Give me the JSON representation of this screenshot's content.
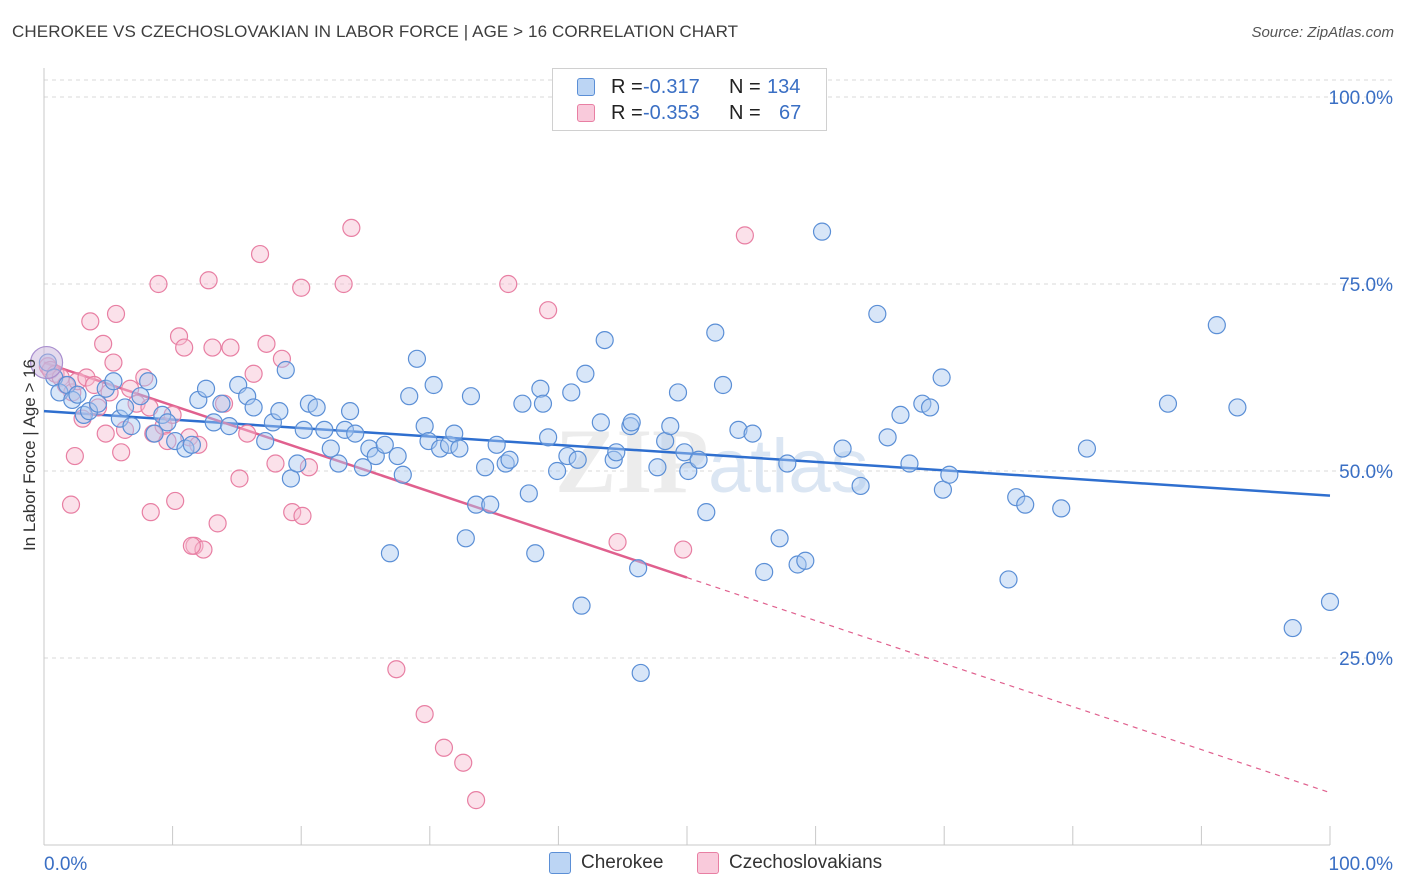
{
  "title": "CHEROKEE VS CZECHOSLOVAKIAN IN LABOR FORCE | AGE > 16 CORRELATION CHART",
  "source": "Source: ZipAtlas.com",
  "watermark": "ZIPatlas",
  "legend": {
    "rows": [
      {
        "r_label": "R =",
        "r_value": "-0.317",
        "n_label": "N =",
        "n_value": "134"
      },
      {
        "r_label": "R =",
        "r_value": "-0.353",
        "n_label": "N =",
        "n_value": "67"
      }
    ]
  },
  "bottom_legend": [
    "Cherokee",
    "Czechoslovakians"
  ],
  "colors": {
    "cherokee_fill": "#a9c8f0",
    "cherokee_stroke": "#5b8fd6",
    "cherokee_line": "#2f6fcf",
    "czech_fill": "#f6bcd0",
    "czech_stroke": "#e87fa3",
    "czech_line": "#e0608e",
    "grid": "#d8d8d8",
    "tick_text": "#3a6fc4"
  },
  "chart_data": {
    "type": "scatter",
    "xlabel": "",
    "ylabel": "In Labor Force | Age > 16",
    "xlim": [
      0,
      100
    ],
    "ylim": [
      0,
      107
    ],
    "x_tick_labels": [
      "0.0%",
      "100.0%"
    ],
    "y_ticks": [
      25,
      50,
      75,
      100
    ],
    "y_tick_labels": [
      "25.0%",
      "50.0%",
      "75.0%",
      "100.0%"
    ],
    "grid": true,
    "legend_position": "top-center",
    "series": [
      {
        "name": "Cherokee",
        "R": -0.317,
        "N": 134,
        "trend": {
          "x0": 0,
          "y0": 58.0,
          "x1": 100,
          "y1": 46.7
        },
        "points": [
          [
            0.3,
            64.5
          ],
          [
            0.8,
            62.5
          ],
          [
            1.2,
            60.5
          ],
          [
            1.8,
            61.5
          ],
          [
            2.2,
            59.5
          ],
          [
            2.6,
            60.2
          ],
          [
            3.1,
            57.5
          ],
          [
            3.5,
            58.0
          ],
          [
            4.2,
            59.0
          ],
          [
            4.8,
            61.0
          ],
          [
            5.4,
            62.0
          ],
          [
            5.9,
            57.0
          ],
          [
            6.3,
            58.5
          ],
          [
            6.8,
            56.0
          ],
          [
            7.5,
            60.0
          ],
          [
            8.1,
            62.0
          ],
          [
            8.6,
            55.0
          ],
          [
            9.2,
            57.5
          ],
          [
            9.6,
            56.5
          ],
          [
            10.2,
            54.0
          ],
          [
            11.0,
            53.0
          ],
          [
            11.5,
            53.5
          ],
          [
            12.0,
            59.5
          ],
          [
            12.6,
            61.0
          ],
          [
            13.2,
            56.5
          ],
          [
            13.8,
            59.0
          ],
          [
            14.4,
            56.0
          ],
          [
            15.1,
            61.5
          ],
          [
            15.8,
            60.0
          ],
          [
            16.3,
            58.5
          ],
          [
            17.2,
            54.0
          ],
          [
            17.8,
            56.5
          ],
          [
            18.3,
            58.0
          ],
          [
            18.8,
            63.5
          ],
          [
            19.2,
            49.0
          ],
          [
            19.7,
            51.0
          ],
          [
            20.2,
            55.5
          ],
          [
            20.6,
            59.0
          ],
          [
            21.2,
            58.5
          ],
          [
            21.8,
            55.5
          ],
          [
            22.3,
            53.0
          ],
          [
            22.9,
            51.0
          ],
          [
            23.4,
            55.5
          ],
          [
            23.8,
            58.0
          ],
          [
            24.2,
            55.0
          ],
          [
            24.8,
            50.5
          ],
          [
            25.3,
            53.0
          ],
          [
            25.8,
            52.0
          ],
          [
            26.5,
            53.5
          ],
          [
            26.9,
            39.0
          ],
          [
            27.5,
            52.0
          ],
          [
            27.9,
            49.5
          ],
          [
            28.4,
            60.0
          ],
          [
            29.0,
            65.0
          ],
          [
            29.6,
            56.0
          ],
          [
            29.9,
            54.0
          ],
          [
            30.3,
            61.5
          ],
          [
            30.8,
            53.0
          ],
          [
            31.5,
            53.5
          ],
          [
            31.9,
            55.0
          ],
          [
            32.3,
            53.0
          ],
          [
            32.8,
            41.0
          ],
          [
            33.2,
            60.0
          ],
          [
            33.6,
            45.5
          ],
          [
            34.3,
            50.5
          ],
          [
            34.7,
            45.5
          ],
          [
            35.2,
            53.5
          ],
          [
            35.9,
            51.0
          ],
          [
            36.2,
            51.5
          ],
          [
            37.2,
            59.0
          ],
          [
            37.7,
            47.0
          ],
          [
            38.2,
            39.0
          ],
          [
            38.6,
            61.0
          ],
          [
            38.8,
            59.0
          ],
          [
            39.2,
            54.5
          ],
          [
            39.9,
            50.0
          ],
          [
            40.7,
            52.0
          ],
          [
            41.0,
            60.5
          ],
          [
            41.5,
            51.5
          ],
          [
            41.8,
            32.0
          ],
          [
            42.1,
            63.0
          ],
          [
            43.3,
            56.5
          ],
          [
            43.6,
            67.5
          ],
          [
            44.3,
            51.5
          ],
          [
            44.5,
            52.5
          ],
          [
            45.6,
            56.0
          ],
          [
            45.7,
            56.5
          ],
          [
            46.2,
            37.0
          ],
          [
            46.4,
            23.0
          ],
          [
            47.7,
            50.5
          ],
          [
            48.3,
            54.0
          ],
          [
            48.7,
            56.0
          ],
          [
            49.3,
            60.5
          ],
          [
            49.8,
            52.5
          ],
          [
            50.1,
            50.0
          ],
          [
            50.9,
            51.5
          ],
          [
            51.5,
            44.5
          ],
          [
            52.2,
            68.5
          ],
          [
            52.8,
            61.5
          ],
          [
            54.0,
            55.5
          ],
          [
            55.1,
            55.0
          ],
          [
            56.0,
            36.5
          ],
          [
            57.2,
            41.0
          ],
          [
            57.8,
            51.0
          ],
          [
            58.6,
            37.5
          ],
          [
            59.2,
            38.0
          ],
          [
            60.5,
            82.0
          ],
          [
            62.1,
            53.0
          ],
          [
            63.5,
            48.0
          ],
          [
            64.8,
            71.0
          ],
          [
            65.6,
            54.5
          ],
          [
            66.6,
            57.5
          ],
          [
            67.3,
            51.0
          ],
          [
            68.3,
            59.0
          ],
          [
            68.9,
            58.5
          ],
          [
            69.8,
            62.5
          ],
          [
            69.9,
            47.5
          ],
          [
            70.4,
            49.5
          ],
          [
            75.0,
            35.5
          ],
          [
            75.6,
            46.5
          ],
          [
            76.3,
            45.5
          ],
          [
            79.1,
            45.0
          ],
          [
            81.1,
            53.0
          ],
          [
            87.4,
            59.0
          ],
          [
            91.2,
            69.5
          ],
          [
            92.8,
            58.5
          ],
          [
            97.1,
            29.0
          ],
          [
            100.0,
            32.5
          ]
        ]
      },
      {
        "name": "Czechoslovakians",
        "R": -0.353,
        "N": 67,
        "trend": {
          "x0": 0,
          "y0": 64.5,
          "x1": 100,
          "y1": 7.0,
          "solid_until": 50
        },
        "points": [
          [
            0.3,
            64.0
          ],
          [
            0.5,
            63.5
          ],
          [
            0.9,
            63.0
          ],
          [
            1.3,
            62.5
          ],
          [
            1.7,
            61.5
          ],
          [
            2.2,
            60.5
          ],
          [
            2.4,
            52.0
          ],
          [
            2.6,
            62.0
          ],
          [
            3.0,
            57.0
          ],
          [
            3.3,
            62.5
          ],
          [
            3.6,
            70.0
          ],
          [
            3.9,
            61.5
          ],
          [
            4.2,
            58.5
          ],
          [
            4.6,
            67.0
          ],
          [
            4.8,
            55.0
          ],
          [
            5.1,
            60.5
          ],
          [
            5.4,
            64.5
          ],
          [
            5.6,
            71.0
          ],
          [
            6.0,
            52.5
          ],
          [
            6.3,
            55.5
          ],
          [
            6.7,
            61.0
          ],
          [
            7.2,
            59.0
          ],
          [
            7.8,
            62.5
          ],
          [
            8.2,
            58.5
          ],
          [
            8.5,
            55.0
          ],
          [
            8.9,
            75.0
          ],
          [
            9.3,
            56.0
          ],
          [
            9.6,
            54.0
          ],
          [
            10.0,
            57.5
          ],
          [
            10.5,
            68.0
          ],
          [
            10.9,
            66.5
          ],
          [
            11.3,
            54.5
          ],
          [
            11.7,
            40.0
          ],
          [
            12.0,
            53.5
          ],
          [
            12.4,
            39.5
          ],
          [
            12.8,
            75.5
          ],
          [
            13.1,
            66.5
          ],
          [
            13.5,
            43.0
          ],
          [
            14.0,
            59.0
          ],
          [
            14.5,
            66.5
          ],
          [
            15.2,
            49.0
          ],
          [
            15.8,
            55.0
          ],
          [
            16.3,
            63.0
          ],
          [
            16.8,
            79.0
          ],
          [
            17.3,
            67.0
          ],
          [
            18.0,
            51.0
          ],
          [
            18.5,
            65.0
          ],
          [
            19.3,
            44.5
          ],
          [
            20.0,
            74.5
          ],
          [
            20.6,
            50.5
          ],
          [
            23.3,
            75.0
          ],
          [
            23.9,
            82.5
          ],
          [
            27.4,
            23.5
          ],
          [
            29.6,
            17.5
          ],
          [
            31.1,
            13.0
          ],
          [
            32.6,
            11.0
          ],
          [
            33.6,
            6.0
          ],
          [
            36.1,
            75.0
          ],
          [
            39.2,
            71.5
          ],
          [
            44.6,
            40.5
          ],
          [
            49.7,
            39.5
          ],
          [
            54.5,
            81.5
          ],
          [
            2.1,
            45.5
          ],
          [
            8.3,
            44.5
          ],
          [
            10.2,
            46.0
          ],
          [
            11.5,
            40.0
          ],
          [
            20.1,
            44.0
          ]
        ]
      }
    ]
  }
}
